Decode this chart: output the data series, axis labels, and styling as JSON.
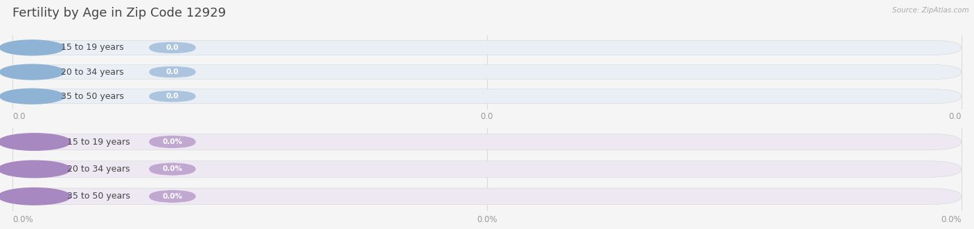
{
  "title": "Fertility by Age in Zip Code 12929",
  "source": "Source: ZipAtlas.com",
  "top_section": {
    "categories": [
      "15 to 19 years",
      "20 to 34 years",
      "35 to 50 years"
    ],
    "values": [
      0.0,
      0.0,
      0.0
    ],
    "bar_bg_color": "#eaeff6",
    "value_bg_color": "#adc4de",
    "value_text_color": "#ffffff",
    "tick_labels": [
      "0.0",
      "0.0",
      "0.0"
    ],
    "circle_color": "#8fb3d4"
  },
  "bottom_section": {
    "categories": [
      "15 to 19 years",
      "20 to 34 years",
      "35 to 50 years"
    ],
    "values": [
      0.0,
      0.0,
      0.0
    ],
    "bar_bg_color": "#ede8f2",
    "value_bg_color": "#c0a8d0",
    "value_text_color": "#ffffff",
    "tick_labels": [
      "0.0%",
      "0.0%",
      "0.0%"
    ],
    "circle_color": "#a888c0"
  },
  "background_color": "#f5f5f5",
  "title_color": "#444444",
  "tick_color": "#999999",
  "grid_color": "#d8d8d8",
  "label_color": "#444444",
  "fig_width": 14.06,
  "fig_height": 3.31,
  "dpi": 100
}
